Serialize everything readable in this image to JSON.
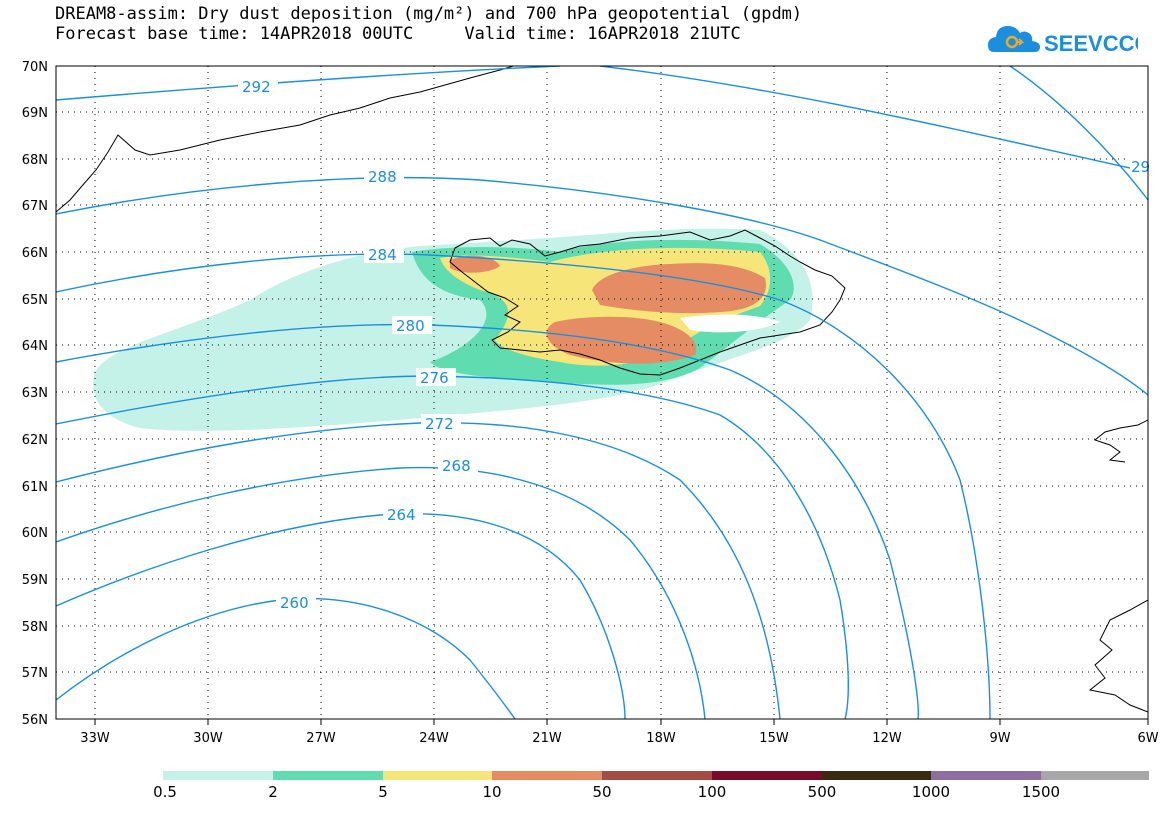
{
  "header": {
    "title": "DREAM8-assim: Dry dust deposition (mg/m²) and 700 hPa geopotential (gpdm)",
    "base_time_label": "Forecast base time: 14APR2018 00UTC",
    "valid_time_label": "Valid time: 16APR2018 21UTC"
  },
  "logo": {
    "text": "SEEVCCC",
    "icon": "cloud-logo-icon",
    "color": "#1a8fe0"
  },
  "map": {
    "lat_labels": [
      "70N",
      "69N",
      "68N",
      "67N",
      "66N",
      "65N",
      "64N",
      "63N",
      "62N",
      "61N",
      "60N",
      "59N",
      "58N",
      "57N",
      "56N"
    ],
    "lon_labels": [
      "33W",
      "30W",
      "27W",
      "24W",
      "21W",
      "18W",
      "15W",
      "12W",
      "9W",
      "6W"
    ],
    "contour_color": "#1a8fe0",
    "contour_labels": [
      "292",
      "288",
      "284",
      "280",
      "276",
      "272",
      "268",
      "264",
      "260",
      "29"
    ]
  },
  "legend": {
    "colors": [
      "#c4f2e8",
      "#5fdcb0",
      "#f6e67a",
      "#e68c64",
      "#a44c44",
      "#7a0a2a",
      "#3a2a14",
      "#8e6ea0",
      "#a7a7a7"
    ],
    "labels": [
      "0.5",
      "2",
      "5",
      "10",
      "50",
      "100",
      "500",
      "1000",
      "1500"
    ]
  }
}
